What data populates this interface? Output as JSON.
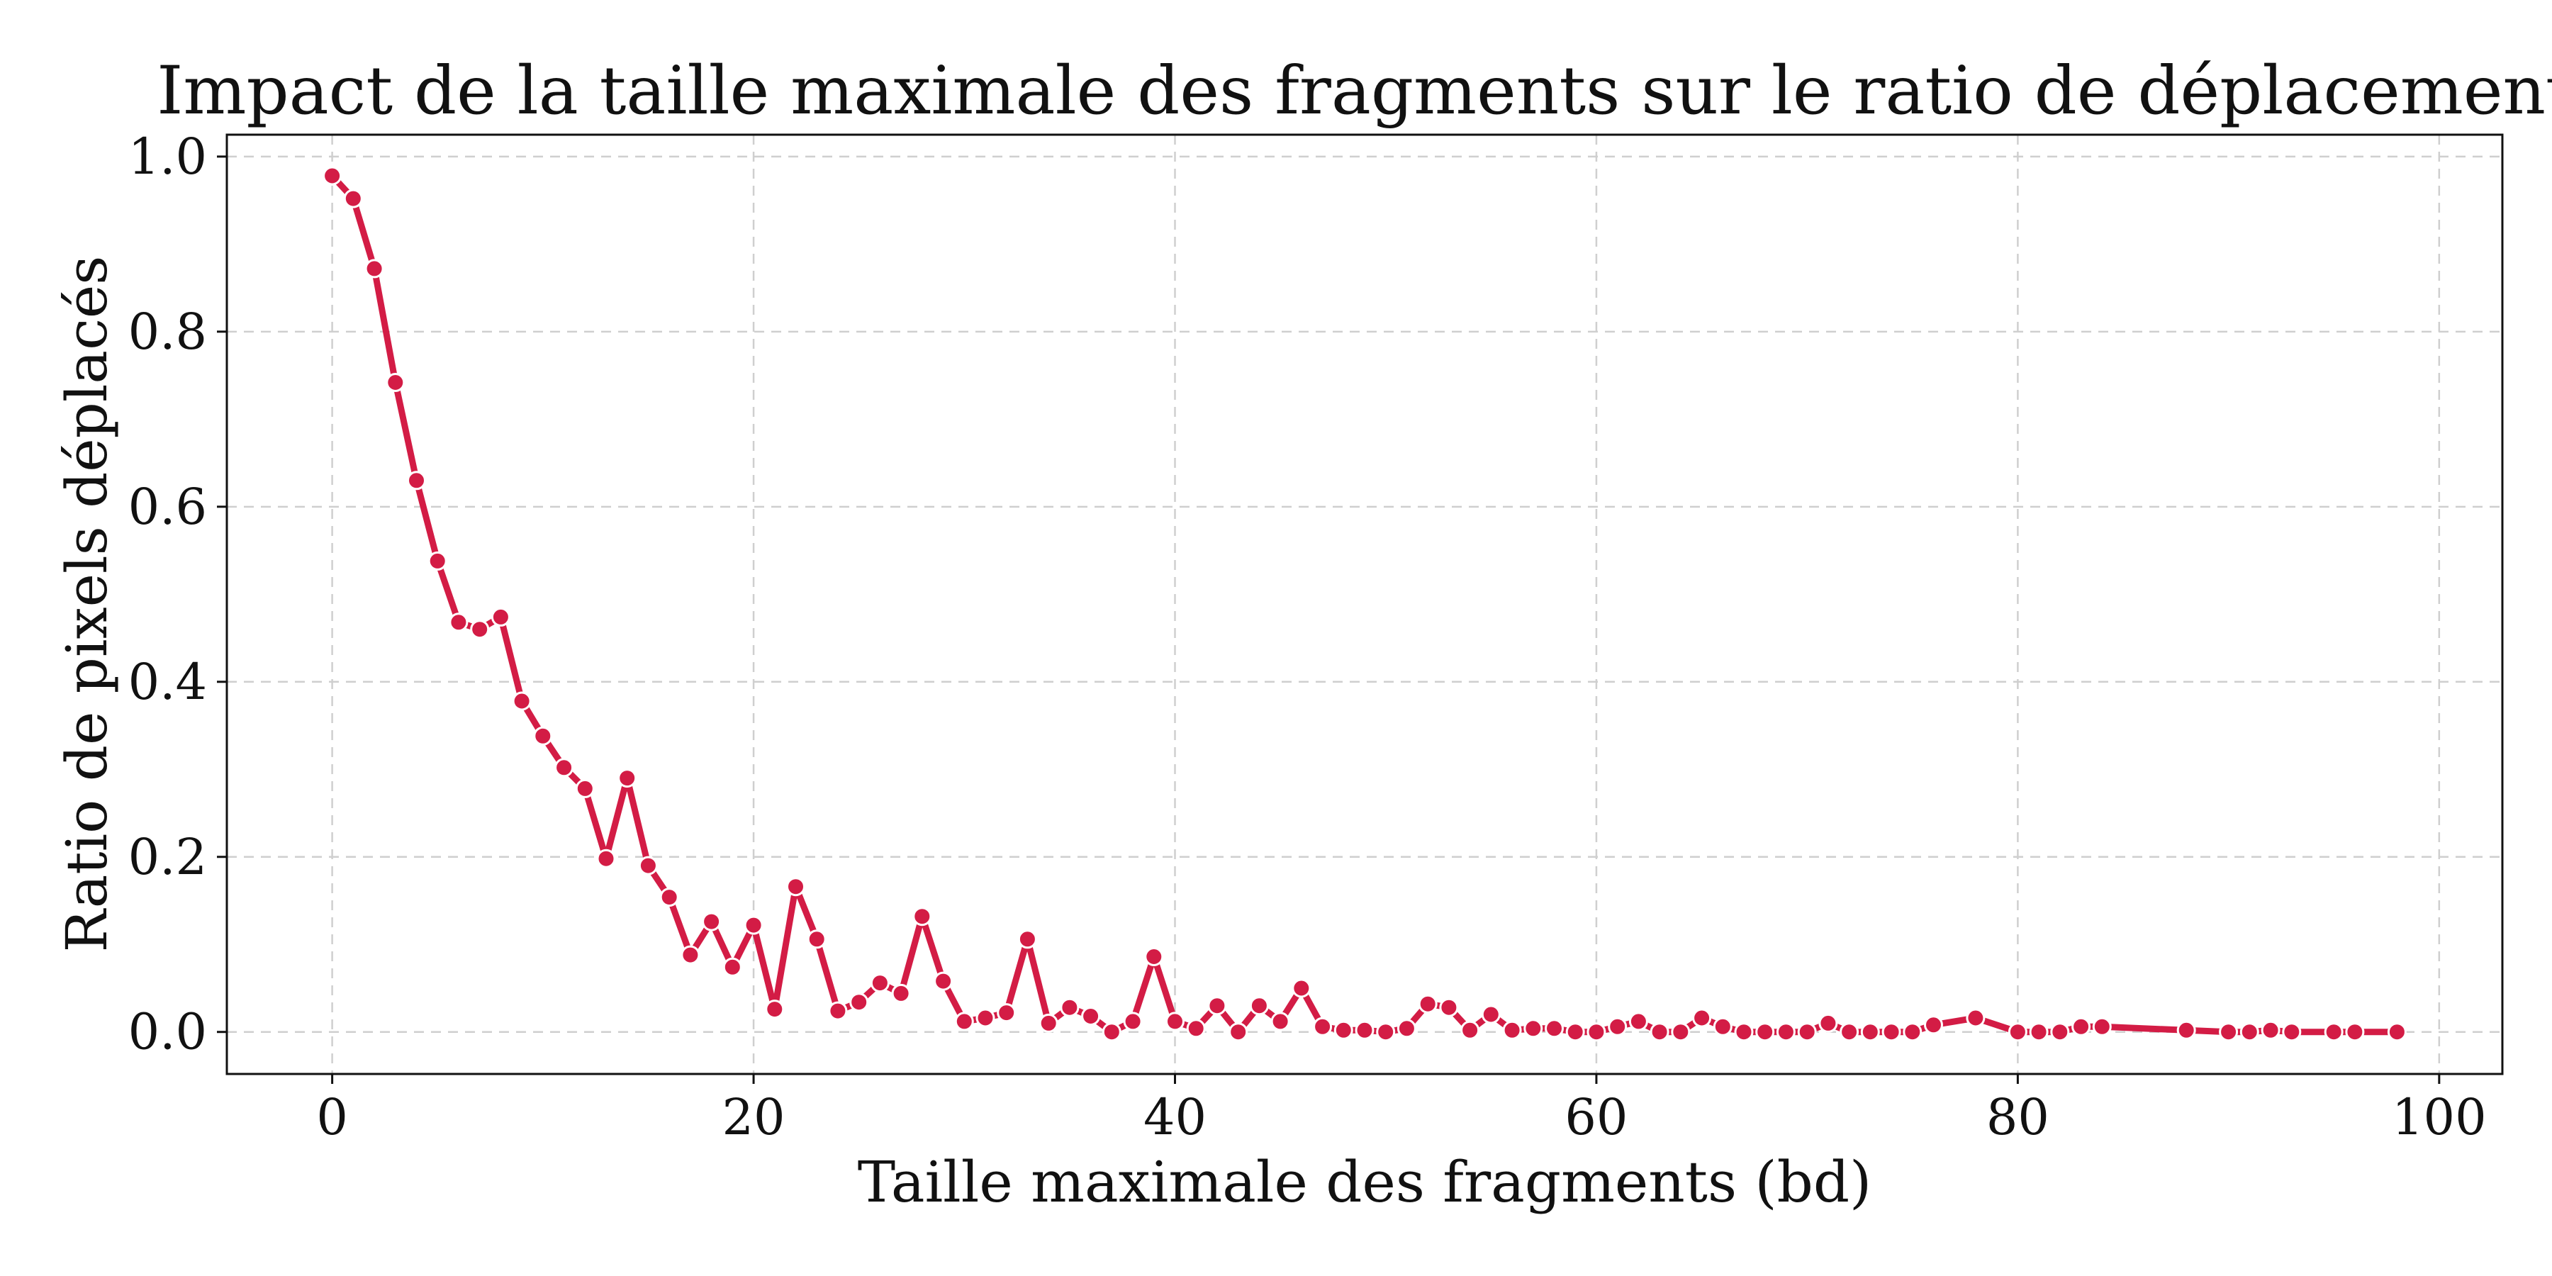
{
  "chart_data": {
    "type": "line",
    "title": "Impact de la taille maximale des fragments sur le ratio de déplacement",
    "xlabel": "Taille maximale des fragments (bd)",
    "ylabel": "Ratio de pixels déplacés",
    "xlim": [
      -5,
      103
    ],
    "ylim": [
      -0.048,
      1.025
    ],
    "xticks": [
      0,
      20,
      40,
      60,
      80,
      100
    ],
    "yticks": [
      0.0,
      0.2,
      0.4,
      0.6,
      0.8,
      1.0
    ],
    "xtick_labels": [
      "0",
      "20",
      "40",
      "60",
      "80",
      "100"
    ],
    "ytick_labels": [
      "0.0",
      "0.2",
      "0.4",
      "0.6",
      "0.8",
      "1.0"
    ],
    "grid": true,
    "line_color": "#d31c45",
    "series": [
      {
        "x": [
          0,
          1,
          2,
          3,
          4,
          5,
          6,
          7,
          8,
          9,
          10,
          11,
          12,
          13,
          14,
          15,
          16,
          17,
          18,
          19,
          20,
          21,
          22,
          23,
          24,
          25,
          26,
          27,
          28,
          29,
          30,
          31,
          32,
          33,
          34,
          35,
          36,
          37,
          38,
          39,
          40,
          41,
          42,
          43,
          44,
          45,
          46,
          47,
          48,
          49,
          50,
          51,
          52,
          53,
          54,
          55,
          56,
          57,
          58,
          59,
          60,
          61,
          62,
          63,
          64,
          65,
          66,
          67,
          68,
          69,
          70,
          71,
          72,
          73,
          74,
          75,
          76,
          78,
          80,
          81,
          82,
          83,
          84,
          88,
          90,
          91,
          92,
          93,
          95,
          96,
          98
        ],
        "values": [
          0.978,
          0.952,
          0.872,
          0.742,
          0.63,
          0.538,
          0.468,
          0.46,
          0.474,
          0.378,
          0.338,
          0.302,
          0.278,
          0.198,
          0.29,
          0.19,
          0.154,
          0.088,
          0.126,
          0.074,
          0.122,
          0.026,
          0.166,
          0.106,
          0.024,
          0.034,
          0.056,
          0.044,
          0.132,
          0.058,
          0.012,
          0.016,
          0.022,
          0.106,
          0.01,
          0.028,
          0.018,
          0.0,
          0.012,
          0.086,
          0.012,
          0.004,
          0.03,
          0.0,
          0.03,
          0.012,
          0.05,
          0.006,
          0.002,
          0.002,
          0.0,
          0.004,
          0.032,
          0.028,
          0.002,
          0.02,
          0.002,
          0.004,
          0.004,
          0.0,
          0.0,
          0.006,
          0.012,
          0.0,
          0.0,
          0.016,
          0.006,
          0.0,
          0.0,
          0.0,
          0.0,
          0.01,
          0.0,
          0.0,
          0.0,
          0.0,
          0.008,
          0.016,
          0.0,
          0.0,
          0.0,
          0.006,
          0.006,
          0.002,
          0.0,
          0.0,
          0.002,
          0.0,
          0.0,
          0.0,
          0.0
        ]
      }
    ]
  }
}
